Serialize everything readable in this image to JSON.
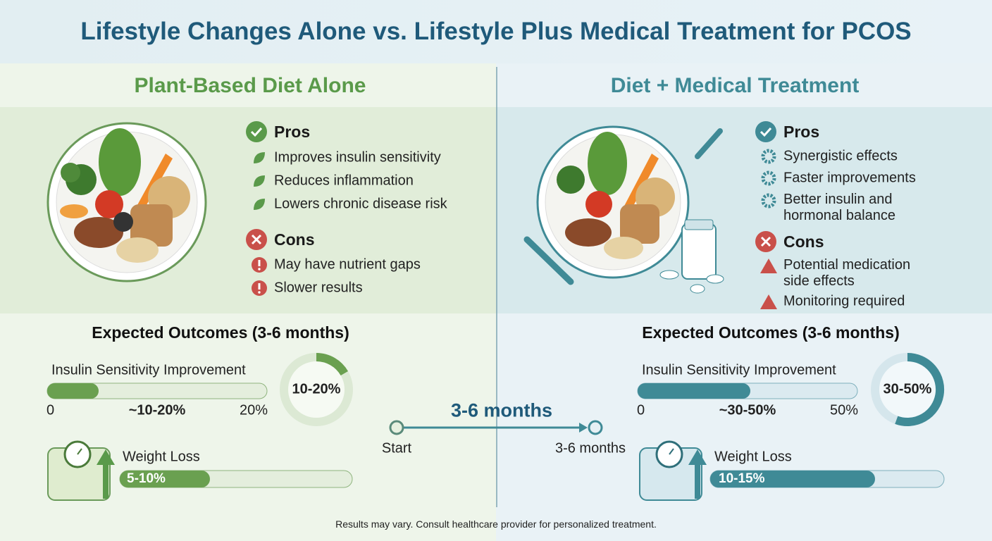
{
  "title": "Lifestyle Changes Alone vs. Lifestyle Plus Medical Treatment for PCOS",
  "panels": [
    {
      "heading": "Plant-Based Diet Alone",
      "pros": {
        "label": "Pros",
        "items": [
          "Improves insulin sensitivity",
          "Reduces inflammation",
          "Lowers chronic disease risk"
        ]
      },
      "cons": {
        "label": "Cons",
        "items": [
          "May have nutrient gaps",
          "Slower results"
        ]
      },
      "outcomes": {
        "title": "Expected Outcomes (3-6 months)",
        "insulin": {
          "label": "Insulin Sensitivity Improvement",
          "min": "0",
          "range": "~10-20%",
          "max": "20%",
          "ring": "10-20%"
        },
        "weight": {
          "label": "Weight Loss",
          "value": "5-10%"
        }
      }
    },
    {
      "heading": "Diet + Medical Treatment",
      "pros": {
        "label": "Pros",
        "items": [
          "Synergistic effects",
          "Faster improvements",
          "Better insulin and hormonal balance"
        ]
      },
      "cons": {
        "label": "Cons",
        "items": [
          "Potential medication side effects",
          "Monitoring required"
        ]
      },
      "outcomes": {
        "title": "Expected Outcomes (3-6 months)",
        "insulin": {
          "label": "Insulin Sensitivity Improvement",
          "min": "0",
          "range": "~30-50%",
          "max": "50%",
          "ring": "30-50%"
        },
        "weight": {
          "label": "Weight Loss",
          "value": "10-15%"
        }
      }
    }
  ],
  "timeline": {
    "label": "3-6 months",
    "start": "Start",
    "end": "3-6 months"
  },
  "footnote": "Results may vary. Consult healthcare provider for personalized treatment."
}
